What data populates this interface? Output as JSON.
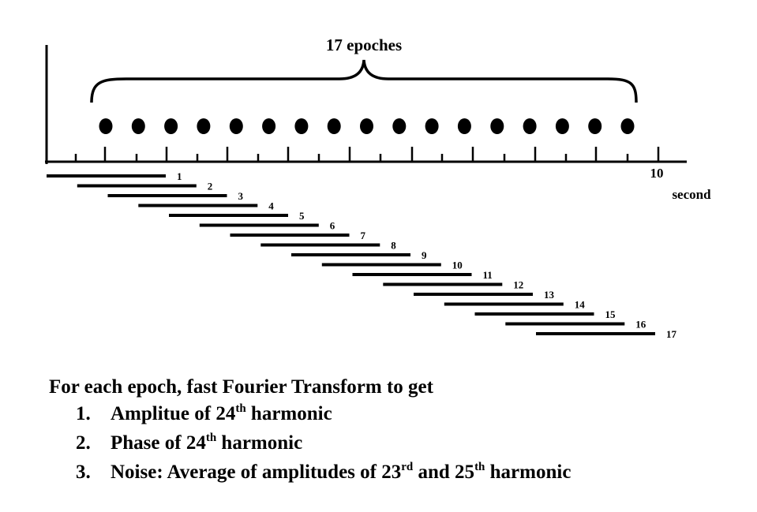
{
  "diagram": {
    "brace_label": "17 epoches",
    "axis_end_label": "10",
    "axis_unit_label": "second",
    "epoch_count": 17,
    "epoch_labels": [
      "1",
      "2",
      "3",
      "4",
      "5",
      "6",
      "7",
      "8",
      "9",
      "10",
      "11",
      "12",
      "13",
      "14",
      "15",
      "16",
      "17"
    ]
  },
  "caption": {
    "heading": "For each epoch, fast Fourier Transform to get",
    "items": [
      {
        "num": "1.",
        "parts": [
          "Amplitue of 24",
          "th",
          " harmonic"
        ]
      },
      {
        "num": "2.",
        "parts": [
          "Phase of 24",
          "th",
          " harmonic"
        ]
      },
      {
        "num": "3.",
        "parts": [
          "Noise: Average of amplitudes of 23",
          "rd",
          " and 25",
          "th",
          " harmonic"
        ]
      }
    ]
  }
}
